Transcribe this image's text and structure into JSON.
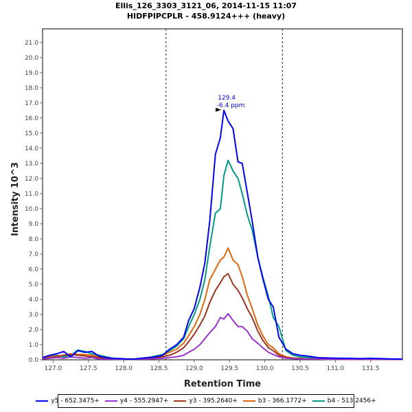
{
  "chart_data": {
    "type": "line",
    "title": "Ellis_126_3303_3121_06, 2014-11-15 11:07",
    "subtitle": "HIDFPIPCPLR - 458.9124+++ (heavy)",
    "xlabel": "Retention Time",
    "ylabel": "Intensity 10^3",
    "xlim": [
      126.85,
      131.95
    ],
    "ylim": [
      0,
      21.9
    ],
    "x_ticks": [
      "127.0",
      "127.5",
      "128.0",
      "128.5",
      "129.0",
      "129.5",
      "130.0",
      "130.5",
      "131.0",
      "131.5"
    ],
    "x_tick_values": [
      127.0,
      127.5,
      128.0,
      128.5,
      129.0,
      129.5,
      130.0,
      130.5,
      131.0,
      131.5
    ],
    "y_ticks": [
      "0.0",
      "1.0",
      "2.0",
      "3.0",
      "4.0",
      "5.0",
      "6.0",
      "7.0",
      "8.0",
      "9.0",
      "10.0",
      "11.0",
      "12.0",
      "13.0",
      "14.0",
      "15.0",
      "16.0",
      "17.0",
      "18.0",
      "19.0",
      "20.0",
      "21.0"
    ],
    "y_tick_values": [
      0,
      1,
      2,
      3,
      4,
      5,
      6,
      7,
      8,
      9,
      10,
      11,
      12,
      13,
      14,
      15,
      16,
      17,
      18,
      19,
      20,
      21
    ],
    "integration_bounds": [
      128.6,
      130.25
    ],
    "peak_annotation": {
      "x": 129.42,
      "y": 16.5,
      "rt_label": "129.4",
      "ppm_label": "-6.4 ppm"
    },
    "series": [
      {
        "name": "y5 - 652.3475+",
        "color": "#0000ee",
        "x": [
          126.85,
          126.95,
          127.05,
          127.15,
          127.25,
          127.35,
          127.45,
          127.55,
          127.65,
          127.75,
          127.85,
          127.95,
          128.05,
          128.15,
          128.25,
          128.35,
          128.45,
          128.55,
          128.65,
          128.75,
          128.85,
          128.92,
          129.0,
          129.08,
          129.15,
          129.22,
          129.3,
          129.37,
          129.42,
          129.48,
          129.55,
          129.62,
          129.68,
          129.75,
          129.82,
          129.9,
          129.97,
          130.05,
          130.12,
          130.2,
          130.3,
          130.4,
          130.5,
          130.6,
          130.75,
          130.9,
          131.05,
          131.2,
          131.35,
          131.5,
          131.65,
          131.8,
          131.95
        ],
        "values": [
          0.15,
          0.3,
          0.4,
          0.55,
          0.2,
          0.6,
          0.5,
          0.55,
          0.25,
          0.15,
          0.1,
          0.08,
          0.05,
          0.05,
          0.1,
          0.15,
          0.2,
          0.3,
          0.7,
          1.0,
          1.5,
          2.6,
          3.4,
          4.8,
          6.4,
          9.2,
          13.6,
          14.7,
          16.5,
          15.8,
          15.3,
          13.1,
          13.0,
          11.1,
          9.2,
          6.8,
          5.4,
          4.0,
          3.5,
          1.5,
          0.7,
          0.4,
          0.3,
          0.25,
          0.15,
          0.12,
          0.1,
          0.1,
          0.08,
          0.1,
          0.08,
          0.06,
          0.05
        ]
      },
      {
        "name": "y4 - 555.2947+",
        "color": "#9933cc",
        "x": [
          126.85,
          126.95,
          127.05,
          127.15,
          127.25,
          127.35,
          127.45,
          127.55,
          127.65,
          127.75,
          127.85,
          127.95,
          128.05,
          128.15,
          128.25,
          128.35,
          128.45,
          128.55,
          128.65,
          128.75,
          128.85,
          128.92,
          129.0,
          129.08,
          129.15,
          129.22,
          129.3,
          129.37,
          129.42,
          129.48,
          129.55,
          129.62,
          129.68,
          129.75,
          129.82,
          129.9,
          129.97,
          130.05,
          130.12,
          130.2,
          130.3,
          130.4,
          130.5,
          130.6,
          130.75,
          130.9,
          131.05,
          131.2,
          131.35,
          131.5,
          131.65,
          131.8,
          131.95
        ],
        "values": [
          0.05,
          0.1,
          0.15,
          0.1,
          0.2,
          0.15,
          0.1,
          0.15,
          0.05,
          0.05,
          0.05,
          0.03,
          0.03,
          0.03,
          0.05,
          0.05,
          0.08,
          0.1,
          0.15,
          0.2,
          0.3,
          0.5,
          0.7,
          1.0,
          1.4,
          1.8,
          2.2,
          2.8,
          2.7,
          3.05,
          2.6,
          2.2,
          2.2,
          1.9,
          1.4,
          1.1,
          0.8,
          0.5,
          0.35,
          0.2,
          0.1,
          0.08,
          0.05,
          0.05,
          0.05,
          0.03,
          0.03,
          0.03,
          0.03,
          0.03,
          0.03,
          0.03,
          0.03
        ]
      },
      {
        "name": "y3 - 395.2640+",
        "color": "#993322",
        "x": [
          126.85,
          126.95,
          127.05,
          127.15,
          127.25,
          127.35,
          127.45,
          127.55,
          127.65,
          127.75,
          127.85,
          127.95,
          128.05,
          128.15,
          128.25,
          128.35,
          128.45,
          128.55,
          128.65,
          128.75,
          128.85,
          128.92,
          129.0,
          129.08,
          129.15,
          129.22,
          129.3,
          129.37,
          129.42,
          129.48,
          129.55,
          129.62,
          129.68,
          129.75,
          129.82,
          129.9,
          129.97,
          130.05,
          130.12,
          130.2,
          130.3,
          130.4,
          130.5,
          130.6,
          130.75,
          130.9,
          131.05,
          131.2,
          131.35,
          131.5,
          131.65,
          131.8,
          131.95
        ],
        "values": [
          0.1,
          0.15,
          0.2,
          0.3,
          0.35,
          0.3,
          0.25,
          0.2,
          0.15,
          0.1,
          0.05,
          0.05,
          0.05,
          0.05,
          0.05,
          0.1,
          0.15,
          0.2,
          0.3,
          0.5,
          0.8,
          1.2,
          1.7,
          2.3,
          2.9,
          3.8,
          4.6,
          5.1,
          5.5,
          5.7,
          5.0,
          4.6,
          4.1,
          3.4,
          2.8,
          1.9,
          1.3,
          0.8,
          0.6,
          0.3,
          0.15,
          0.1,
          0.08,
          0.05,
          0.05,
          0.05,
          0.03,
          0.03,
          0.03,
          0.03,
          0.03,
          0.03,
          0.03
        ]
      },
      {
        "name": "b3 - 366.1772+",
        "color": "#dd6611",
        "x": [
          126.85,
          126.95,
          127.05,
          127.15,
          127.25,
          127.35,
          127.45,
          127.55,
          127.65,
          127.75,
          127.85,
          127.95,
          128.05,
          128.15,
          128.25,
          128.35,
          128.45,
          128.55,
          128.65,
          128.75,
          128.85,
          128.92,
          129.0,
          129.08,
          129.15,
          129.22,
          129.3,
          129.37,
          129.42,
          129.48,
          129.55,
          129.62,
          129.68,
          129.75,
          129.82,
          129.9,
          129.97,
          130.05,
          130.12,
          130.2,
          130.3,
          130.4,
          130.5,
          130.6,
          130.75,
          130.9,
          131.05,
          131.2,
          131.35,
          131.5,
          131.65,
          131.8,
          131.95
        ],
        "values": [
          0.1,
          0.2,
          0.25,
          0.3,
          0.4,
          0.35,
          0.35,
          0.3,
          0.2,
          0.15,
          0.1,
          0.05,
          0.05,
          0.05,
          0.1,
          0.15,
          0.2,
          0.3,
          0.5,
          0.7,
          1.1,
          1.6,
          2.2,
          3.0,
          4.0,
          5.3,
          6.0,
          6.6,
          6.8,
          7.4,
          6.6,
          6.3,
          5.5,
          4.3,
          3.4,
          2.3,
          1.6,
          1.0,
          0.8,
          0.4,
          0.2,
          0.12,
          0.1,
          0.05,
          0.05,
          0.05,
          0.03,
          0.03,
          0.03,
          0.03,
          0.03,
          0.03,
          0.03
        ]
      },
      {
        "name": "b4 - 513.2456+",
        "color": "#009988",
        "x": [
          126.85,
          126.95,
          127.05,
          127.15,
          127.25,
          127.35,
          127.45,
          127.55,
          127.65,
          127.75,
          127.85,
          127.95,
          128.05,
          128.15,
          128.25,
          128.35,
          128.45,
          128.55,
          128.65,
          128.75,
          128.85,
          128.92,
          129.0,
          129.08,
          129.15,
          129.22,
          129.3,
          129.37,
          129.42,
          129.48,
          129.55,
          129.62,
          129.68,
          129.75,
          129.82,
          129.9,
          129.97,
          130.05,
          130.12,
          130.2,
          130.3,
          130.4,
          130.5,
          130.6,
          130.75,
          130.9,
          131.05,
          131.2,
          131.35,
          131.5,
          131.65,
          131.8,
          131.95
        ],
        "values": [
          0.1,
          0.25,
          0.3,
          0.2,
          0.3,
          0.65,
          0.55,
          0.4,
          0.3,
          0.2,
          0.1,
          0.08,
          0.05,
          0.05,
          0.1,
          0.15,
          0.25,
          0.35,
          0.6,
          0.9,
          1.4,
          2.2,
          3.0,
          4.0,
          5.3,
          7.5,
          9.7,
          10.0,
          12.2,
          13.2,
          12.5,
          12.0,
          11.0,
          9.6,
          8.6,
          6.8,
          5.5,
          4.2,
          2.8,
          2.2,
          0.6,
          0.3,
          0.2,
          0.15,
          0.1,
          0.08,
          0.05,
          0.05,
          0.05,
          0.05,
          0.05,
          0.05,
          0.05
        ]
      }
    ]
  }
}
